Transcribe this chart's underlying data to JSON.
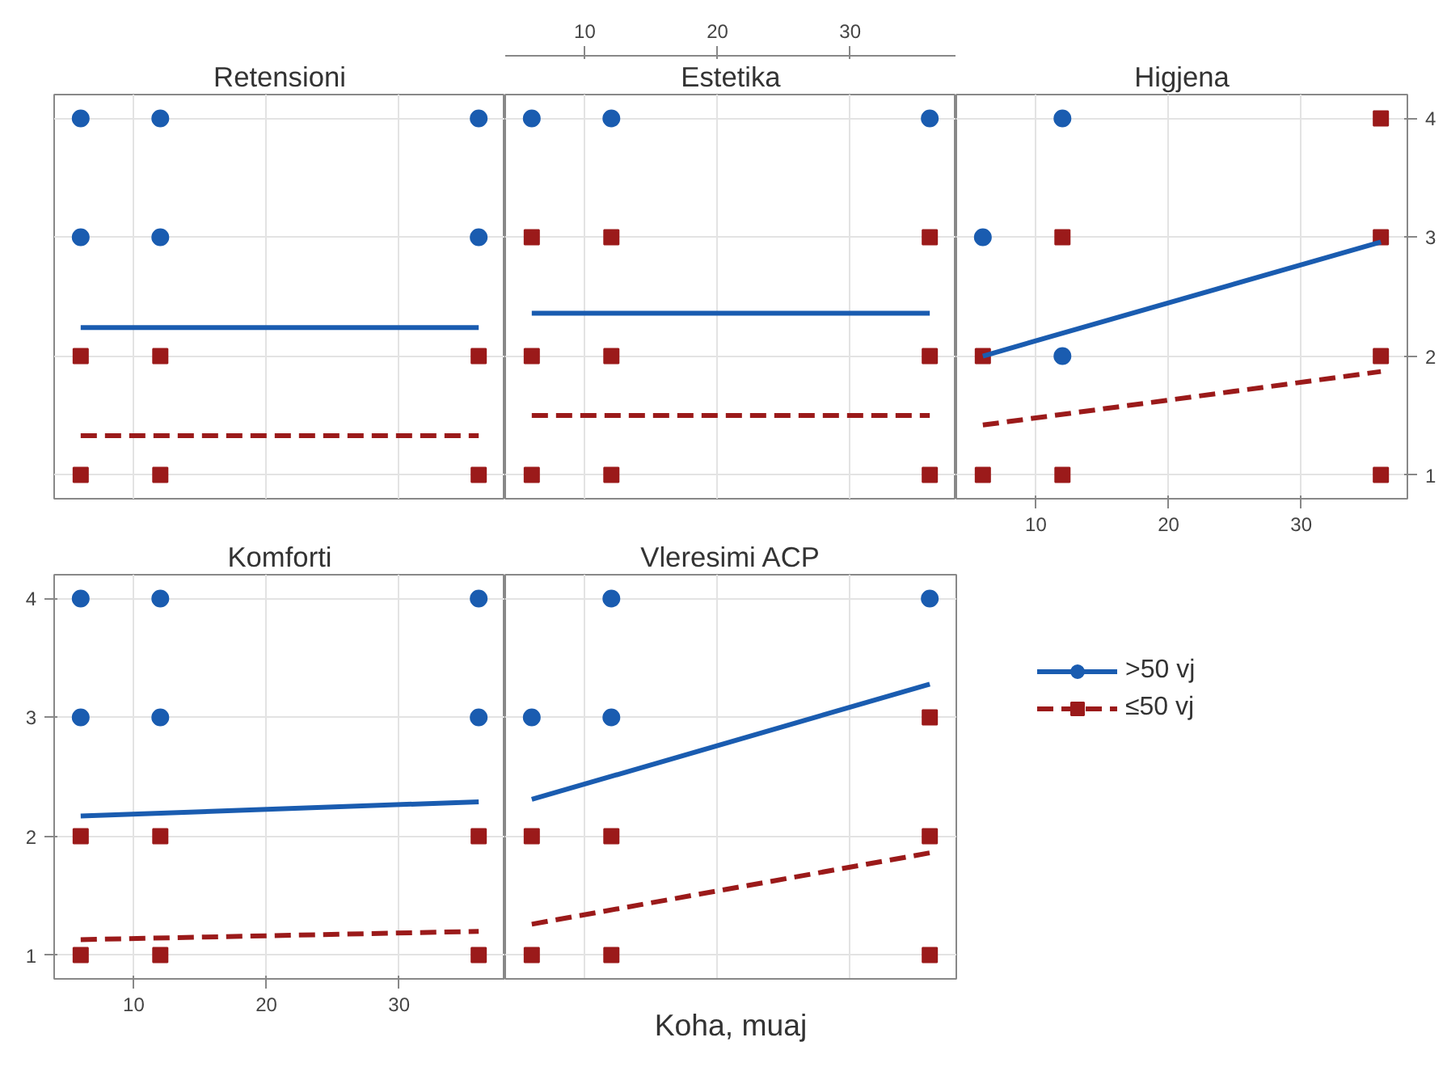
{
  "chart_data": [
    {
      "type": "scatter",
      "title": "Retensioni",
      "xlim": [
        4,
        38
      ],
      "xticks": [
        10,
        20,
        30
      ],
      "ylim": [
        0.8,
        4.2
      ],
      "yticks": [
        1,
        2,
        3,
        4
      ],
      "grid": true,
      "tick_labels": false,
      "series": [
        {
          "marker": "circle",
          "color": "#1a5cb0",
          "x": [
            6,
            12,
            36,
            6,
            12,
            36
          ],
          "values": [
            4,
            4,
            4,
            3,
            3,
            3
          ]
        },
        {
          "marker": "square",
          "color": "#9b1a1a",
          "x": [
            6,
            12,
            36,
            6,
            12,
            36
          ],
          "values": [
            2,
            2,
            2,
            1,
            1,
            1
          ]
        },
        {
          "type": "line",
          "line_style": "solid",
          "color": "#1a5cb0",
          "x": [
            6,
            36
          ],
          "values": [
            2.24,
            2.24
          ]
        },
        {
          "type": "line",
          "line_style": "dashed",
          "color": "#9b1a1a",
          "x": [
            6,
            36
          ],
          "values": [
            1.33,
            1.33
          ]
        }
      ]
    },
    {
      "type": "scatter",
      "title": "Estetika",
      "xlim": [
        4,
        38
      ],
      "xticks": [
        10,
        20,
        30
      ],
      "ylim": [
        0.8,
        4.2
      ],
      "yticks": [
        1,
        2,
        3,
        4
      ],
      "grid": true,
      "tick_labels": "x",
      "series": [
        {
          "marker": "circle",
          "color": "#1a5cb0",
          "x": [
            6,
            12,
            36
          ],
          "values": [
            4,
            4,
            4
          ]
        },
        {
          "marker": "square",
          "color": "#9b1a1a",
          "x": [
            6,
            12,
            36,
            6,
            12,
            36,
            6,
            12,
            36
          ],
          "values": [
            3,
            3,
            3,
            2,
            2,
            2,
            1,
            1,
            1
          ]
        },
        {
          "type": "line",
          "line_style": "solid",
          "color": "#1a5cb0",
          "x": [
            6,
            36
          ],
          "values": [
            2.36,
            2.36
          ]
        },
        {
          "type": "line",
          "line_style": "dashed",
          "color": "#9b1a1a",
          "x": [
            6,
            36
          ],
          "values": [
            1.5,
            1.5
          ]
        }
      ]
    },
    {
      "type": "scatter",
      "title": "Higjena",
      "xlim": [
        4,
        38
      ],
      "xticks": [
        10,
        20,
        30
      ],
      "ylim": [
        0.8,
        4.2
      ],
      "yticks": [
        1,
        2,
        3,
        4
      ],
      "grid": true,
      "series": [
        {
          "marker": "circle",
          "color": "#1a5cb0",
          "x": [
            12,
            6,
            12
          ],
          "values": [
            4,
            3,
            2
          ]
        },
        {
          "marker": "square",
          "color": "#9b1a1a",
          "x": [
            36,
            12,
            36,
            6,
            36,
            6,
            12,
            36
          ],
          "values": [
            4,
            3,
            3,
            2,
            2,
            1,
            1,
            1
          ]
        },
        {
          "type": "line",
          "line_style": "solid",
          "color": "#1a5cb0",
          "x": [
            6,
            36
          ],
          "values": [
            2.0,
            2.96
          ]
        },
        {
          "type": "line",
          "line_style": "dashed",
          "color": "#9b1a1a",
          "x": [
            6,
            36
          ],
          "values": [
            1.42,
            1.87
          ]
        }
      ]
    },
    {
      "type": "scatter",
      "title": "Komforti",
      "xlim": [
        4,
        38
      ],
      "xticks": [
        10,
        20,
        30
      ],
      "ylim": [
        0.8,
        4.2
      ],
      "yticks": [
        1,
        2,
        3,
        4
      ],
      "grid": true,
      "series": [
        {
          "marker": "circle",
          "color": "#1a5cb0",
          "x": [
            6,
            12,
            36,
            6,
            12,
            36
          ],
          "values": [
            4,
            4,
            4,
            3,
            3,
            3
          ]
        },
        {
          "marker": "square",
          "color": "#9b1a1a",
          "x": [
            6,
            12,
            36,
            6,
            12,
            36
          ],
          "values": [
            2,
            2,
            2,
            1,
            1,
            1
          ]
        },
        {
          "type": "line",
          "line_style": "solid",
          "color": "#1a5cb0",
          "x": [
            6,
            36
          ],
          "values": [
            2.17,
            2.29
          ]
        },
        {
          "type": "line",
          "line_style": "dashed",
          "color": "#9b1a1a",
          "x": [
            6,
            36
          ],
          "values": [
            1.13,
            1.2
          ]
        }
      ]
    },
    {
      "type": "scatter",
      "title": "Vleresimi ACP",
      "xlabel": "Koha, muaj",
      "xlim": [
        4,
        38
      ],
      "xticks": [
        10,
        20,
        30
      ],
      "ylim": [
        0.8,
        4.2
      ],
      "yticks": [
        1,
        2,
        3,
        4
      ],
      "grid": true,
      "tick_labels": false,
      "legend": "right",
      "series": [
        {
          "name": ">50 vj",
          "marker": "circle",
          "color": "#1a5cb0",
          "x": [
            12,
            36,
            6,
            12
          ],
          "values": [
            4,
            4,
            3,
            3
          ]
        },
        {
          "name": "≤50 vj",
          "marker": "square",
          "color": "#9b1a1a",
          "x": [
            36,
            6,
            12,
            36,
            6,
            12,
            36
          ],
          "values": [
            3,
            2,
            2,
            2,
            1,
            1,
            1
          ]
        },
        {
          "type": "line",
          "line_style": "solid",
          "color": "#1a5cb0",
          "x": [
            6,
            36
          ],
          "values": [
            2.31,
            3.28
          ]
        },
        {
          "type": "line",
          "line_style": "dashed",
          "color": "#9b1a1a",
          "x": [
            6,
            36
          ],
          "values": [
            1.26,
            1.86
          ]
        }
      ]
    }
  ]
}
